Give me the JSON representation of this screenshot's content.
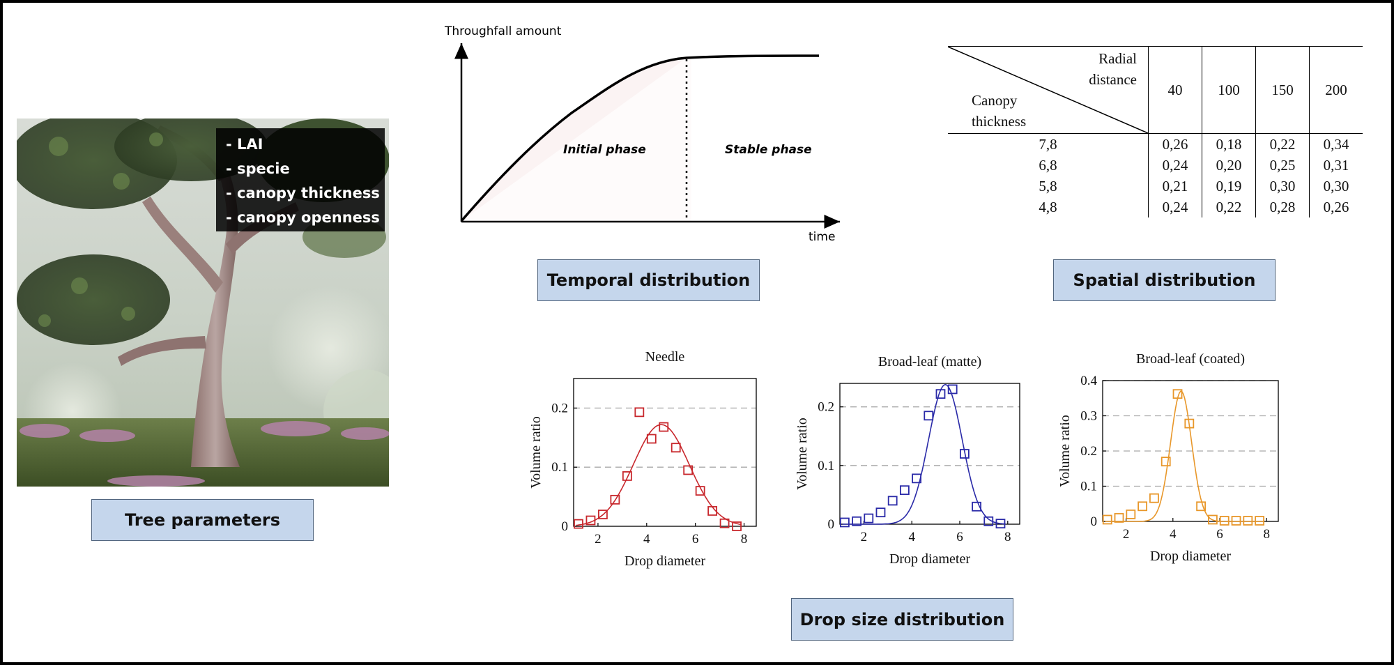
{
  "tree": {
    "params": [
      "- LAI",
      "- specie",
      "- canopy thickness",
      "- canopy openness"
    ],
    "label": "Tree parameters"
  },
  "temporal": {
    "ylabel": "Throughfall amount",
    "xlabel": "time",
    "phase1": "Initial phase",
    "phase2": "Stable phase",
    "label": "Temporal distribution"
  },
  "spatial": {
    "col_header": "Radial distance",
    "col_header_lines": [
      "Radial",
      "distance"
    ],
    "row_header_lines": [
      "Canopy",
      "thickness"
    ],
    "columns": [
      "40",
      "100",
      "150",
      "200"
    ],
    "rows": [
      {
        "thickness": "7,8",
        "values": [
          "0,26",
          "0,18",
          "0,22",
          "0,34"
        ]
      },
      {
        "thickness": "6,8",
        "values": [
          "0,24",
          "0,20",
          "0,25",
          "0,31"
        ]
      },
      {
        "thickness": "5,8",
        "values": [
          "0,21",
          "0,19",
          "0,30",
          "0,30"
        ]
      },
      {
        "thickness": "4,8",
        "values": [
          "0,24",
          "0,22",
          "0,28",
          "0,26"
        ]
      }
    ],
    "label": "Spatial distribution"
  },
  "drop": {
    "label": "Drop size distribution"
  },
  "colors": {
    "needle": "#c8282d",
    "matte": "#2a2aa8",
    "coated": "#e8972a",
    "label_bg": "#c5d6ec"
  },
  "chart_data": [
    {
      "type": "scatter",
      "title": "Needle",
      "xlabel": "Drop diameter",
      "ylabel": "Volume ratio",
      "xlim": [
        1,
        8.5
      ],
      "ylim": [
        0,
        0.25
      ],
      "xticks": [
        "2",
        "4",
        "6",
        "8"
      ],
      "yticks": [
        "0",
        "0.1",
        "0.2"
      ],
      "grid": "dashed horizontal",
      "series": [
        {
          "mode": "markers",
          "x": [
            1.2,
            1.7,
            2.2,
            2.7,
            3.2,
            3.7,
            4.2,
            4.7,
            5.2,
            5.7,
            6.2,
            6.7,
            7.2,
            7.7
          ],
          "y": [
            0.004,
            0.01,
            0.02,
            0.045,
            0.085,
            0.193,
            0.148,
            0.168,
            0.133,
            0.095,
            0.06,
            0.026,
            0.005,
            0.0
          ]
        },
        {
          "mode": "line",
          "curve": {
            "mu": 4.6,
            "sigma": 1.15,
            "amp": 0.172,
            "xmin": 1.1,
            "xmax": 7.9
          }
        }
      ]
    },
    {
      "type": "scatter",
      "title": "Broad-leaf (matte)",
      "xlabel": "Drop diameter",
      "ylabel": "Volume ratio",
      "xlim": [
        1,
        8.5
      ],
      "ylim": [
        0,
        0.24
      ],
      "xticks": [
        "2",
        "4",
        "6",
        "8"
      ],
      "yticks": [
        "0",
        "0.1",
        "0.2"
      ],
      "grid": "dashed horizontal",
      "series": [
        {
          "mode": "markers",
          "x": [
            1.2,
            1.7,
            2.2,
            2.7,
            3.2,
            3.7,
            4.2,
            4.7,
            5.2,
            5.7,
            6.2,
            6.7,
            7.2,
            7.7
          ],
          "y": [
            0.003,
            0.005,
            0.01,
            0.02,
            0.04,
            0.058,
            0.078,
            0.185,
            0.222,
            0.23,
            0.12,
            0.03,
            0.005,
            0.001
          ]
        },
        {
          "mode": "line",
          "curve": {
            "mu": 5.4,
            "sigma": 0.7,
            "amp": 0.238,
            "xmin": 1.1,
            "xmax": 7.9
          }
        }
      ]
    },
    {
      "type": "scatter",
      "title": "Broad-leaf (coated)",
      "xlabel": "Drop diameter",
      "ylabel": "Volume ratio",
      "xlim": [
        1,
        8.5
      ],
      "ylim": [
        0,
        0.4
      ],
      "xticks": [
        "2",
        "4",
        "6",
        "8"
      ],
      "yticks": [
        "0",
        "0.1",
        "0.2",
        "0.3",
        "0.4"
      ],
      "grid": "dashed horizontal",
      "series": [
        {
          "mode": "markers",
          "x": [
            1.2,
            1.7,
            2.2,
            2.7,
            3.2,
            3.7,
            4.2,
            4.7,
            5.2,
            5.7,
            6.2,
            6.7,
            7.2,
            7.7
          ],
          "y": [
            0.005,
            0.01,
            0.02,
            0.043,
            0.066,
            0.17,
            0.362,
            0.278,
            0.043,
            0.005,
            0.002,
            0.002,
            0.002,
            0.002
          ]
        },
        {
          "mode": "line",
          "curve": {
            "mu": 4.35,
            "sigma": 0.45,
            "amp": 0.37,
            "xmin": 1.1,
            "xmax": 7.9
          }
        }
      ]
    }
  ]
}
